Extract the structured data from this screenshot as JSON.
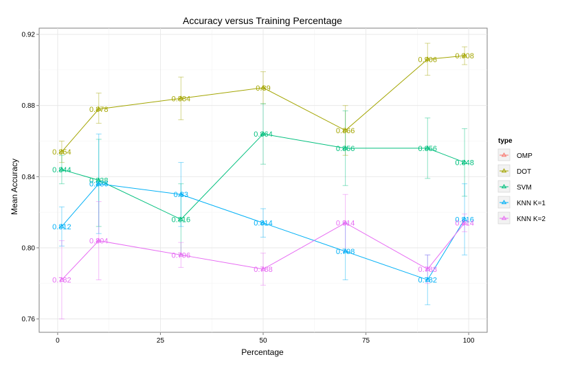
{
  "chart_data": {
    "type": "line",
    "title": "Accuracy versus Training Percentage",
    "xlabel": "Percentage",
    "ylabel": "Mean Accuracy",
    "xlim": [
      -4.5,
      104.5
    ],
    "ylim": [
      0.7525,
      0.9235
    ],
    "x_ticks": [
      0,
      25,
      50,
      75,
      100
    ],
    "y_ticks": [
      0.76,
      0.8,
      0.84,
      0.88,
      0.92
    ],
    "x_tick_labels": [
      "0",
      "25",
      "50",
      "75",
      "100"
    ],
    "y_tick_labels": [
      "0.76",
      "0.80",
      "0.84",
      "0.88",
      "0.92"
    ],
    "grid": true,
    "legend": {
      "title": "type",
      "position": "right"
    },
    "series": [
      {
        "name": "OMP",
        "color": "#F8766D",
        "points": []
      },
      {
        "name": "DOT",
        "color": "#A3A500",
        "points": [
          {
            "x": 1,
            "y": 0.854,
            "label": "0.854",
            "err": [
              0.848,
              0.86
            ]
          },
          {
            "x": 10,
            "y": 0.878,
            "label": "0.878",
            "err": [
              0.87,
              0.887
            ]
          },
          {
            "x": 30,
            "y": 0.884,
            "label": "0.884",
            "err": [
              0.872,
              0.896
            ]
          },
          {
            "x": 50,
            "y": 0.89,
            "label": "0.89",
            "err": [
              0.881,
              0.899
            ]
          },
          {
            "x": 70,
            "y": 0.866,
            "label": "0.866",
            "err": [
              0.852,
              0.88
            ]
          },
          {
            "x": 90,
            "y": 0.906,
            "label": "0.906",
            "err": [
              0.897,
              0.915
            ]
          },
          {
            "x": 99,
            "y": 0.908,
            "label": "0.908",
            "err": [
              0.903,
              0.913
            ]
          }
        ]
      },
      {
        "name": "SVM",
        "color": "#00BF7D",
        "points": [
          {
            "x": 1,
            "y": 0.844,
            "label": "0.844",
            "err": [
              0.836,
              0.852
            ]
          },
          {
            "x": 10,
            "y": 0.838,
            "label": "0.838",
            "err": [
              0.812,
              0.861
            ]
          },
          {
            "x": 30,
            "y": 0.816,
            "label": "0.816",
            "err": [
              0.796,
              0.836
            ]
          },
          {
            "x": 50,
            "y": 0.864,
            "label": "0.864",
            "err": [
              0.847,
              0.881
            ]
          },
          {
            "x": 70,
            "y": 0.856,
            "label": "0.856",
            "err": [
              0.835,
              0.877
            ]
          },
          {
            "x": 90,
            "y": 0.856,
            "label": "0.856",
            "err": [
              0.839,
              0.873
            ]
          },
          {
            "x": 99,
            "y": 0.848,
            "label": "0.848",
            "err": [
              0.829,
              0.867
            ]
          }
        ]
      },
      {
        "name": "KNN K=1",
        "color": "#00B0F6",
        "points": [
          {
            "x": 1,
            "y": 0.812,
            "label": "0.812",
            "err": [
              0.801,
              0.823
            ]
          },
          {
            "x": 10,
            "y": 0.836,
            "label": "0.836",
            "err": [
              0.808,
              0.864
            ]
          },
          {
            "x": 30,
            "y": 0.83,
            "label": "0.83",
            "err": [
              0.812,
              0.848
            ]
          },
          {
            "x": 50,
            "y": 0.814,
            "label": "0.814",
            "err": [
              0.806,
              0.822
            ]
          },
          {
            "x": 70,
            "y": 0.798,
            "label": "0.798",
            "err": [
              0.782,
              0.814
            ]
          },
          {
            "x": 90,
            "y": 0.782,
            "label": "0.782",
            "err": [
              0.768,
              0.796
            ]
          },
          {
            "x": 99,
            "y": 0.816,
            "label": "0.816",
            "err": [
              0.796,
              0.836
            ]
          }
        ]
      },
      {
        "name": "KNN K=2",
        "color": "#E76BF3",
        "points": [
          {
            "x": 1,
            "y": 0.782,
            "label": "0.782",
            "err": [
              0.76,
              0.804
            ]
          },
          {
            "x": 10,
            "y": 0.804,
            "label": "0.804",
            "err": [
              0.782,
              0.826
            ]
          },
          {
            "x": 30,
            "y": 0.796,
            "label": "0.796",
            "err": [
              0.789,
              0.803
            ]
          },
          {
            "x": 50,
            "y": 0.788,
            "label": "0.788",
            "err": [
              0.779,
              0.797
            ]
          },
          {
            "x": 70,
            "y": 0.814,
            "label": "0.814",
            "err": [
              0.798,
              0.83
            ]
          },
          {
            "x": 90,
            "y": 0.788,
            "label": "0.788",
            "err": [
              0.78,
              0.796
            ]
          },
          {
            "x": 99,
            "y": 0.814,
            "label": "0.814",
            "err": [
              0.809,
              0.819
            ]
          }
        ]
      }
    ]
  }
}
